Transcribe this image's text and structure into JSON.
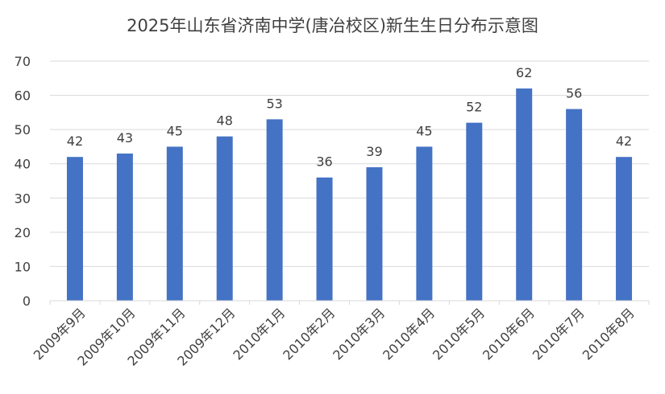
{
  "chart_data": {
    "type": "bar",
    "title": "2025年山东省济南中学(唐冶校区)新生生日分布示意图",
    "xlabel": "",
    "ylabel": "",
    "categories": [
      "2009年9月",
      "2009年10月",
      "2009年11月",
      "2009年12月",
      "2010年1月",
      "2010年2月",
      "2010年3月",
      "2010年4月",
      "2010年5月",
      "2010年6月",
      "2010年7月",
      "2010年8月"
    ],
    "values": [
      42,
      43,
      45,
      48,
      53,
      36,
      39,
      45,
      52,
      62,
      56,
      42
    ],
    "ylim": [
      0,
      70
    ],
    "yticks": [
      0,
      10,
      20,
      30,
      40,
      50,
      60,
      70
    ],
    "grid": true,
    "legend": "none",
    "data_labels": true,
    "bar_color": "#4472C4",
    "grid_color": "#D9D9D9"
  }
}
